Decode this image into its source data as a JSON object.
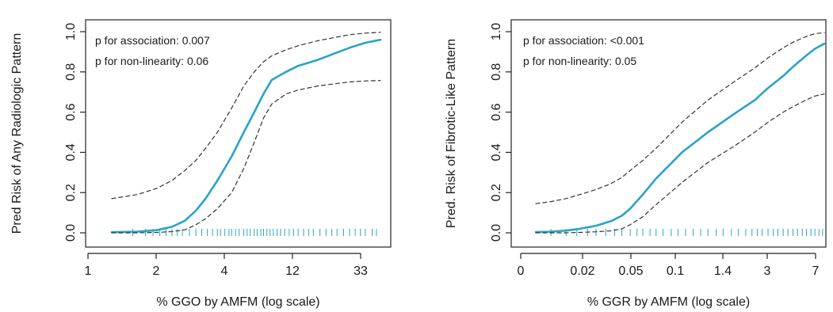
{
  "chart_data": [
    {
      "type": "line",
      "xlabel": "% GGO by AMFM (log scale)",
      "ylabel": "Pred Risk of Any Radiologic Pattern",
      "ylim": [
        0,
        1
      ],
      "x_scale": "log",
      "x_tick_labels": [
        "1",
        "2",
        "4",
        "12",
        "33"
      ],
      "y_tick_labels": [
        "0.0",
        "0.2",
        "0.4",
        "0.6",
        "0.8",
        "1.0"
      ],
      "annotations": [
        "p for association: 0.007",
        "p for non-linearity: 0.06"
      ],
      "x": [
        "1.3",
        "1.8",
        "2.3",
        "2.8",
        "3.3",
        "3.8",
        "4.3",
        "5",
        "6",
        "7",
        "8",
        "9",
        "10",
        "12",
        "14",
        "18",
        "22",
        "27",
        "33",
        "40"
      ],
      "series": [
        {
          "role": "fit",
          "color": "#2aa3c8",
          "values": [
            0.003,
            0.006,
            0.013,
            0.03,
            0.06,
            0.11,
            0.17,
            0.26,
            0.38,
            0.5,
            0.6,
            0.69,
            0.76,
            0.8,
            0.83,
            0.86,
            0.89,
            0.92,
            0.945,
            0.96
          ]
        },
        {
          "role": "upper",
          "style": "dashed",
          "color": "#333333",
          "values": [
            0.17,
            0.19,
            0.22,
            0.26,
            0.31,
            0.36,
            0.42,
            0.5,
            0.62,
            0.73,
            0.8,
            0.85,
            0.88,
            0.91,
            0.93,
            0.955,
            0.97,
            0.985,
            0.993,
            0.997
          ]
        },
        {
          "role": "lower",
          "style": "dashed",
          "color": "#333333",
          "values": [
            0.0,
            0.0,
            0.002,
            0.006,
            0.015,
            0.04,
            0.07,
            0.12,
            0.2,
            0.32,
            0.45,
            0.57,
            0.64,
            0.69,
            0.71,
            0.73,
            0.74,
            0.75,
            0.755,
            0.757
          ]
        }
      ],
      "rug_color": "#2aa3c8",
      "rug": [
        "1.7",
        "2.0",
        "2.2",
        "2.4",
        "2.6",
        "2.8",
        "3.0",
        "3.2",
        "3.5",
        "3.8",
        "4.1",
        "4.4",
        "4.7",
        "5.0",
        "5.2",
        "5.5",
        "5.8",
        "6.0",
        "6.3",
        "6.6",
        "7.0",
        "7.3",
        "7.6",
        "8.0",
        "8.3",
        "8.7",
        "9.0",
        "9.4",
        "9.8",
        "10.2",
        "10.7",
        "11.2",
        "11.8",
        "12.5",
        "13.2",
        "14.0",
        "15.0",
        "16.0",
        "17.0",
        "18.5",
        "20.0",
        "21.5",
        "23.0",
        "25.0",
        "27.0",
        "29.0",
        "31.0",
        "33.0",
        "36.0",
        "38.0"
      ]
    },
    {
      "type": "line",
      "xlabel": "% GGR by AMFM (log scale)",
      "ylabel": "Pred. Risk of Fibrotic-Like Pattern",
      "ylim": [
        0,
        1
      ],
      "x_scale": "log",
      "x_tick_labels": [
        "0",
        "0.02",
        "0.05",
        "0.1",
        "1.4",
        "3",
        "7"
      ],
      "y_tick_labels": [
        "0.0",
        "0.2",
        "0.4",
        "0.6",
        "0.8",
        "1.0"
      ],
      "annotations": [
        "p for association: <0.001",
        "p for non-linearity: 0.05"
      ],
      "x": [
        "0.004",
        "0.006",
        "0.009",
        "0.013",
        "0.02",
        "0.03",
        "0.04",
        "0.05",
        "0.07",
        "0.1",
        "0.2",
        "0.4",
        "0.8",
        "1.4",
        "2",
        "3",
        "4",
        "5.5",
        "7",
        "9"
      ],
      "series": [
        {
          "role": "fit",
          "color": "#2aa3c8",
          "values": [
            0.004,
            0.006,
            0.011,
            0.02,
            0.035,
            0.058,
            0.085,
            0.12,
            0.19,
            0.27,
            0.4,
            0.5,
            0.59,
            0.66,
            0.72,
            0.78,
            0.83,
            0.88,
            0.915,
            0.94
          ]
        },
        {
          "role": "upper",
          "style": "dashed",
          "color": "#333333",
          "values": [
            0.145,
            0.155,
            0.17,
            0.19,
            0.215,
            0.245,
            0.275,
            0.31,
            0.36,
            0.42,
            0.55,
            0.66,
            0.75,
            0.82,
            0.87,
            0.92,
            0.95,
            0.975,
            0.99,
            0.995
          ]
        },
        {
          "role": "lower",
          "style": "dashed",
          "color": "#333333",
          "values": [
            0.0,
            0.0,
            0.0,
            0.002,
            0.005,
            0.01,
            0.02,
            0.04,
            0.08,
            0.14,
            0.25,
            0.35,
            0.43,
            0.5,
            0.55,
            0.6,
            0.63,
            0.66,
            0.68,
            0.69
          ]
        }
      ],
      "rug_color": "#2aa3c8",
      "rug": [
        "0.006",
        "0.009",
        "0.012",
        "0.016",
        "0.02",
        "0.026",
        "0.033",
        "0.04",
        "0.05",
        "0.06",
        "0.07",
        "0.085",
        "0.1",
        "0.12",
        "0.15",
        "0.18",
        "0.22",
        "0.27",
        "0.33",
        "0.4",
        "0.5",
        "0.6",
        "0.75",
        "0.9",
        "1.1",
        "1.3",
        "1.5",
        "1.7",
        "2.0",
        "2.3",
        "2.6",
        "3.0",
        "3.4",
        "3.9",
        "4.4",
        "5.0",
        "5.6",
        "6.3",
        "7.0",
        "7.8",
        "8.6"
      ]
    }
  ]
}
